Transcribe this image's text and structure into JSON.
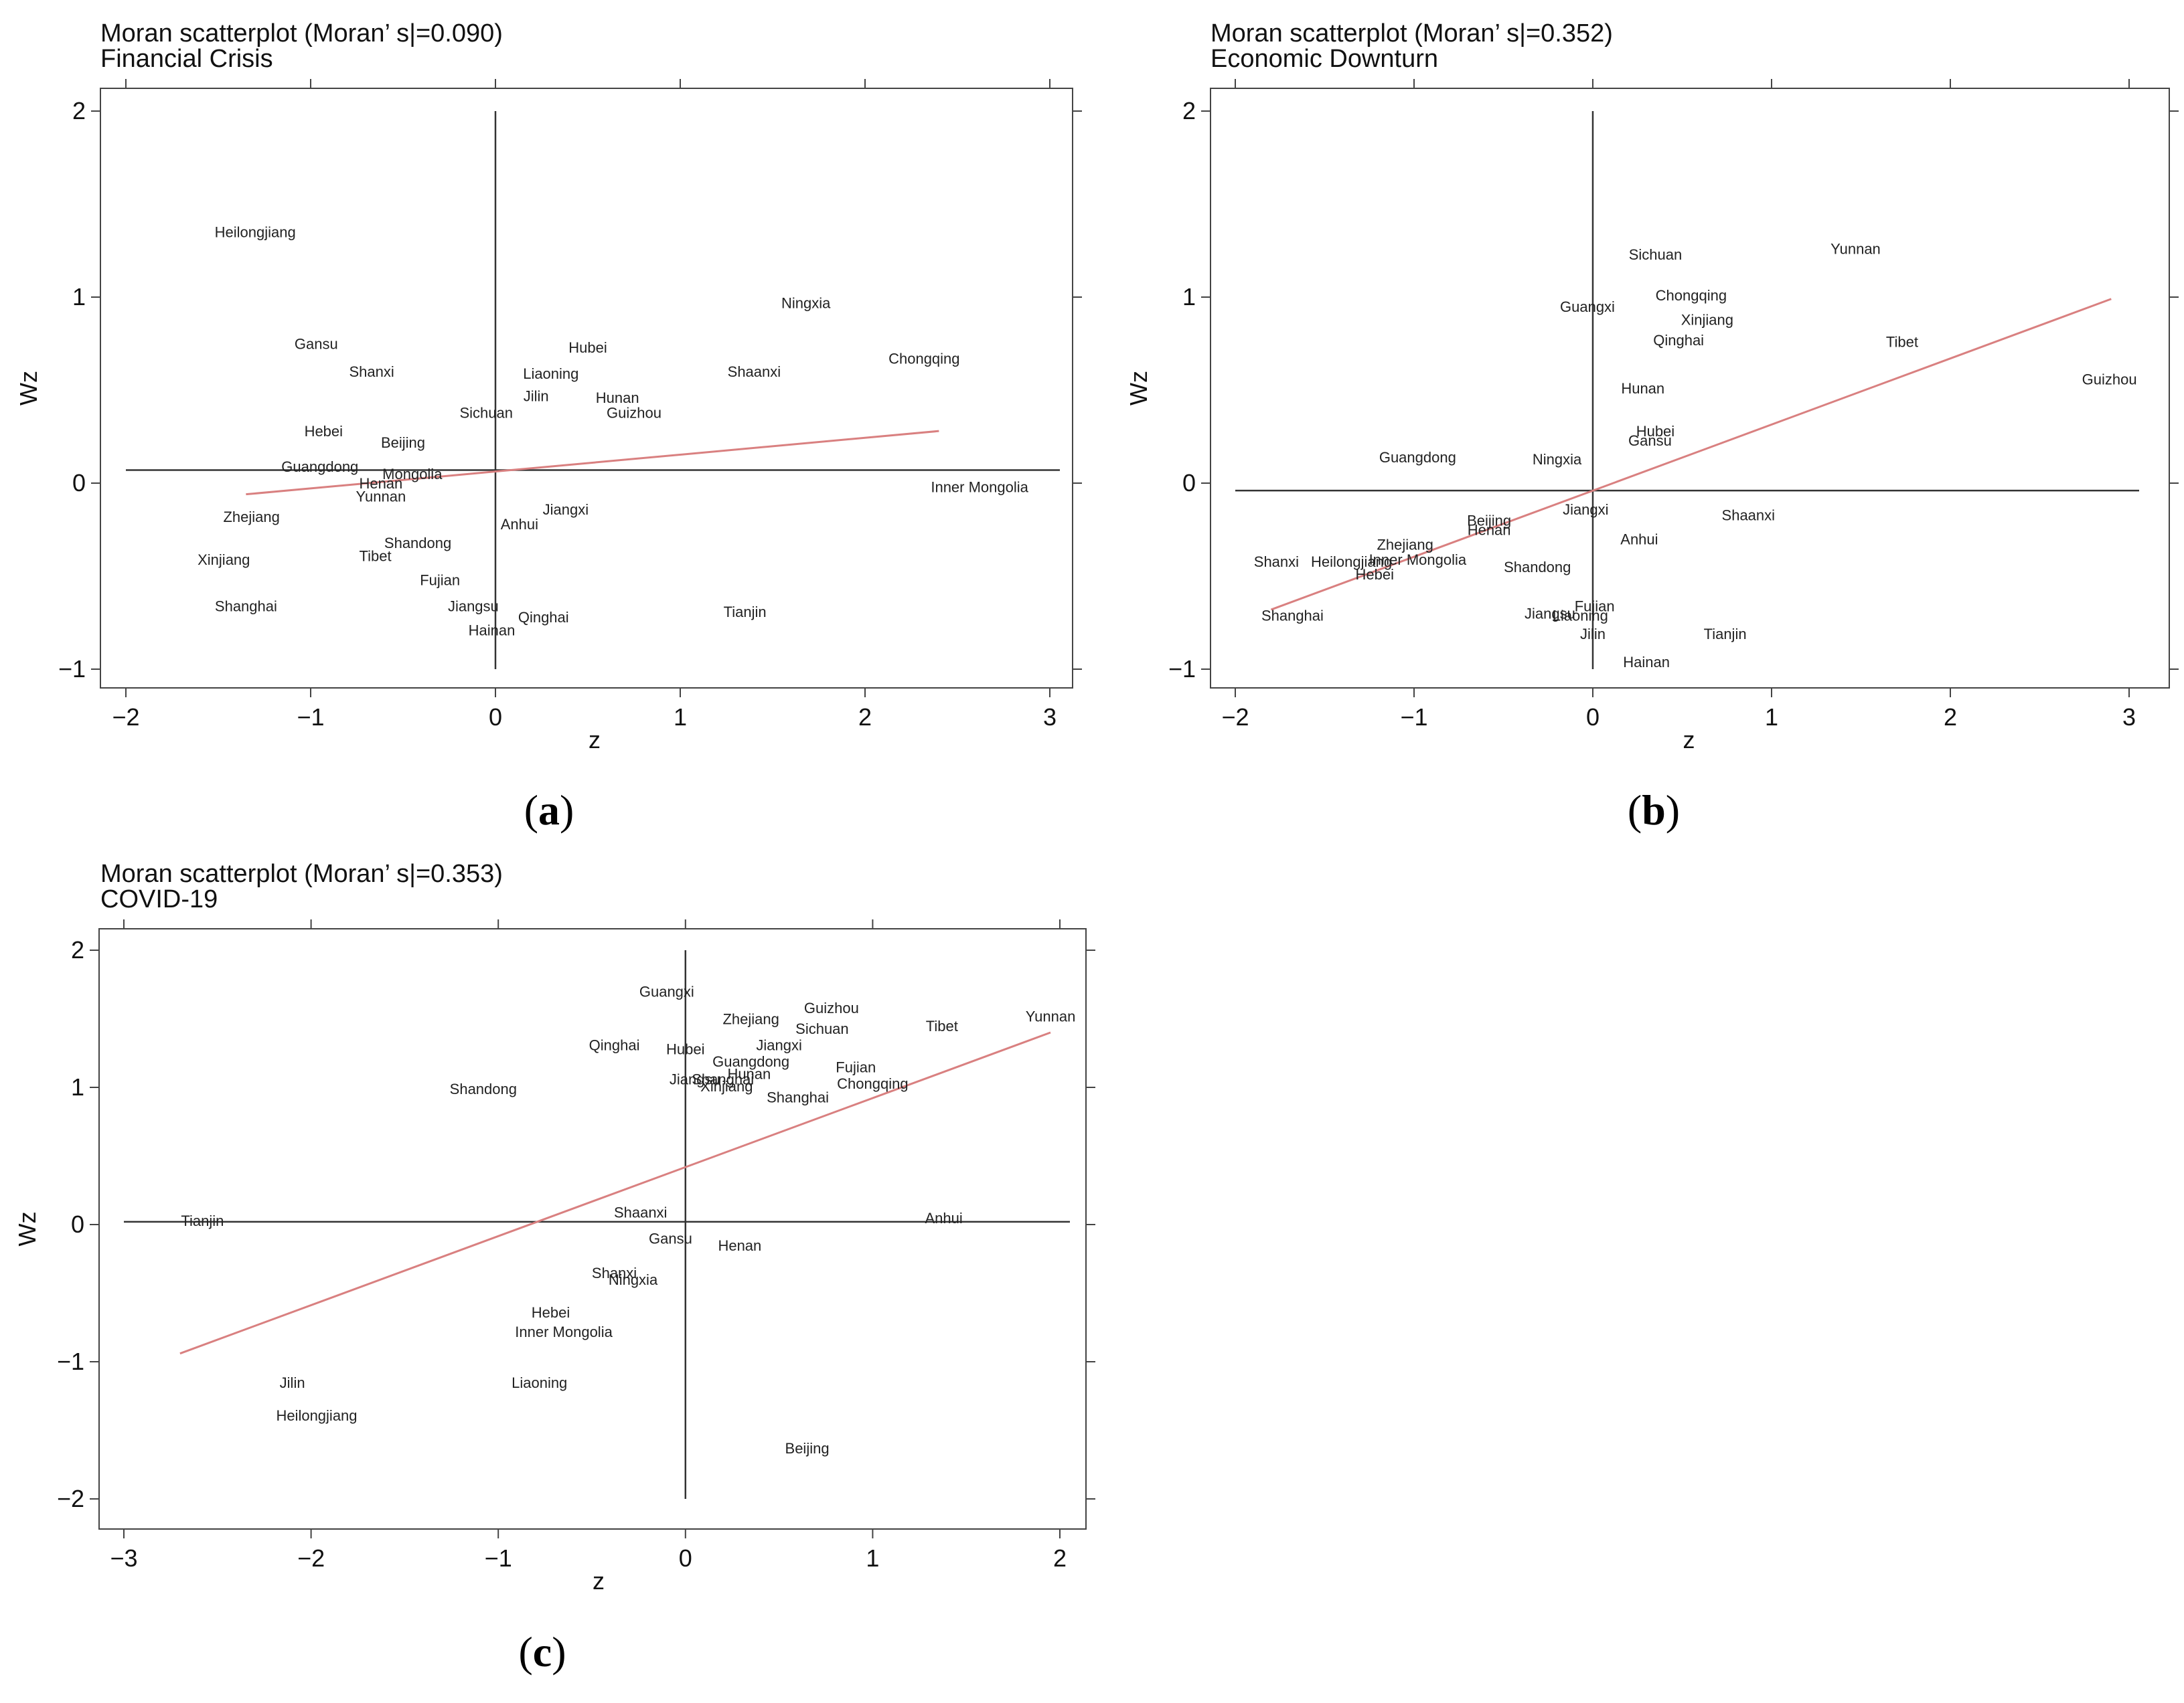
{
  "chart_data": [
    {
      "type": "scatter",
      "caption": "a",
      "title": "Moran scatterplot (Moran’ s|=0.090)",
      "subtitle": "Financial Crisis",
      "xlabel": "z",
      "ylabel": "Wz",
      "xlim": [
        -2,
        3
      ],
      "ylim": [
        -1,
        2
      ],
      "xticks": [
        -2,
        -1,
        0,
        1,
        2,
        3
      ],
      "yticks": [
        -1,
        0,
        1,
        2
      ],
      "xtick_labels": [
        "−2",
        "−1",
        "0",
        "1",
        "2",
        "3"
      ],
      "ytick_labels": [
        "−1",
        "0",
        "1",
        "2"
      ],
      "hline": 0.07,
      "vline": 0,
      "fit_line": {
        "x": [
          -1.35,
          2.4
        ],
        "y": [
          -0.06,
          0.28
        ],
        "color": "#d98080"
      },
      "points": [
        {
          "name": "Heilongjiang",
          "x": -1.3,
          "y": 1.35
        },
        {
          "name": "Gansu",
          "x": -0.97,
          "y": 0.75
        },
        {
          "name": "Shanxi",
          "x": -0.67,
          "y": 0.6
        },
        {
          "name": "Hebei",
          "x": -0.93,
          "y": 0.28
        },
        {
          "name": "Beijing",
          "x": -0.5,
          "y": 0.22
        },
        {
          "name": "Guangdong",
          "x": -0.95,
          "y": 0.09
        },
        {
          "name": "Mongolia",
          "x": -0.45,
          "y": 0.05
        },
        {
          "name": "Henan",
          "x": -0.62,
          "y": 0.0
        },
        {
          "name": "Yunnan",
          "x": -0.62,
          "y": -0.07
        },
        {
          "name": "Zhejiang",
          "x": -1.32,
          "y": -0.18
        },
        {
          "name": "Shandong",
          "x": -0.42,
          "y": -0.32
        },
        {
          "name": "Tibet",
          "x": -0.65,
          "y": -0.39
        },
        {
          "name": "Xinjiang",
          "x": -1.47,
          "y": -0.41
        },
        {
          "name": "Fujian",
          "x": -0.3,
          "y": -0.52
        },
        {
          "name": "Shanghai",
          "x": -1.35,
          "y": -0.66
        },
        {
          "name": "Jiangsu",
          "x": -0.12,
          "y": -0.66
        },
        {
          "name": "Qinghai",
          "x": 0.26,
          "y": -0.72
        },
        {
          "name": "Hainan",
          "x": -0.02,
          "y": -0.79
        },
        {
          "name": "Hubei",
          "x": 0.5,
          "y": 0.73
        },
        {
          "name": "Liaoning",
          "x": 0.3,
          "y": 0.59
        },
        {
          "name": "Jilin",
          "x": 0.22,
          "y": 0.47
        },
        {
          "name": "Sichuan",
          "x": -0.05,
          "y": 0.38
        },
        {
          "name": "Hunan",
          "x": 0.66,
          "y": 0.46
        },
        {
          "name": "Guizhou",
          "x": 0.75,
          "y": 0.38
        },
        {
          "name": "Jiangxi",
          "x": 0.38,
          "y": -0.14
        },
        {
          "name": "Anhui",
          "x": 0.13,
          "y": -0.22
        },
        {
          "name": "Ningxia",
          "x": 1.68,
          "y": 0.97
        },
        {
          "name": "Shaanxi",
          "x": 1.4,
          "y": 0.6
        },
        {
          "name": "Chongqing",
          "x": 2.32,
          "y": 0.67
        },
        {
          "name": "Inner Mongolia",
          "x": 2.62,
          "y": -0.02
        },
        {
          "name": "Tianjin",
          "x": 1.35,
          "y": -0.69
        }
      ]
    },
    {
      "type": "scatter",
      "caption": "b",
      "title": "Moran scatterplot (Moran’ s|=0.352)",
      "subtitle": "Economic Downturn",
      "xlabel": "z",
      "ylabel": "Wz",
      "xlim": [
        -2,
        3
      ],
      "ylim": [
        -1,
        2
      ],
      "xticks": [
        -2,
        -1,
        0,
        1,
        2,
        3
      ],
      "yticks": [
        -1,
        0,
        1,
        2
      ],
      "xtick_labels": [
        "−2",
        "−1",
        "0",
        "1",
        "2",
        "3"
      ],
      "ytick_labels": [
        "−1",
        "0",
        "1",
        "2"
      ],
      "hline": -0.04,
      "vline": 0,
      "fit_line": {
        "x": [
          -1.8,
          2.9
        ],
        "y": [
          -0.68,
          0.99
        ],
        "color": "#d98080"
      },
      "points": [
        {
          "name": "Sichuan",
          "x": 0.35,
          "y": 1.23
        },
        {
          "name": "Yunnan",
          "x": 1.47,
          "y": 1.26
        },
        {
          "name": "Chongqing",
          "x": 0.55,
          "y": 1.01
        },
        {
          "name": "Guangxi",
          "x": -0.03,
          "y": 0.95
        },
        {
          "name": "Xinjiang",
          "x": 0.64,
          "y": 0.88
        },
        {
          "name": "Qinghai",
          "x": 0.48,
          "y": 0.77
        },
        {
          "name": "Tibet",
          "x": 1.73,
          "y": 0.76
        },
        {
          "name": "Guizhou",
          "x": 2.89,
          "y": 0.56
        },
        {
          "name": "Hunan",
          "x": 0.28,
          "y": 0.51
        },
        {
          "name": "Hubei",
          "x": 0.35,
          "y": 0.28
        },
        {
          "name": "Gansu",
          "x": 0.32,
          "y": 0.23
        },
        {
          "name": "Guangdong",
          "x": -0.98,
          "y": 0.14
        },
        {
          "name": "Ningxia",
          "x": -0.2,
          "y": 0.13
        },
        {
          "name": "Jiangxi",
          "x": -0.04,
          "y": -0.14
        },
        {
          "name": "Beijing",
          "x": -0.58,
          "y": -0.2
        },
        {
          "name": "Henan",
          "x": -0.58,
          "y": -0.25
        },
        {
          "name": "Shaanxi",
          "x": 0.87,
          "y": -0.17
        },
        {
          "name": "Anhui",
          "x": 0.26,
          "y": -0.3
        },
        {
          "name": "Zhejiang",
          "x": -1.05,
          "y": -0.33
        },
        {
          "name": "Shanxi",
          "x": -1.77,
          "y": -0.42
        },
        {
          "name": "Heilongjiang",
          "x": -1.35,
          "y": -0.42
        },
        {
          "name": "Inner Mongolia",
          "x": -0.98,
          "y": -0.41
        },
        {
          "name": "Hebei",
          "x": -1.22,
          "y": -0.49
        },
        {
          "name": "Shandong",
          "x": -0.31,
          "y": -0.45
        },
        {
          "name": "Shanghai",
          "x": -1.68,
          "y": -0.71
        },
        {
          "name": "Jiangsu",
          "x": -0.24,
          "y": -0.7
        },
        {
          "name": "Liaoning",
          "x": -0.07,
          "y": -0.71
        },
        {
          "name": "Fujian",
          "x": 0.01,
          "y": -0.66
        },
        {
          "name": "Jilin",
          "x": 0.0,
          "y": -0.81
        },
        {
          "name": "Tianjin",
          "x": 0.74,
          "y": -0.81
        },
        {
          "name": "Hainan",
          "x": 0.3,
          "y": -0.96
        }
      ]
    },
    {
      "type": "scatter",
      "caption": "c",
      "title": "Moran scatterplot (Moran’ s|=0.353)",
      "subtitle": "COVID-19",
      "xlabel": "z",
      "ylabel": "Wz",
      "xlim": [
        -3,
        2
      ],
      "ylim": [
        -2,
        2
      ],
      "xticks": [
        -3,
        -2,
        -1,
        0,
        1,
        2
      ],
      "yticks": [
        -2,
        -1,
        0,
        1,
        2
      ],
      "xtick_labels": [
        "−3",
        "−2",
        "−1",
        "0",
        "1",
        "2"
      ],
      "ytick_labels": [
        "−2",
        "−1",
        "0",
        "1",
        "2"
      ],
      "hline": 0.02,
      "vline": 0,
      "fit_line": {
        "x": [
          -2.7,
          1.95
        ],
        "y": [
          -0.94,
          1.4
        ],
        "color": "#d98080"
      },
      "points": [
        {
          "name": "Guangxi",
          "x": -0.1,
          "y": 1.7
        },
        {
          "name": "Guizhou",
          "x": 0.78,
          "y": 1.58
        },
        {
          "name": "Zhejiang",
          "x": 0.35,
          "y": 1.5
        },
        {
          "name": "Sichuan",
          "x": 0.73,
          "y": 1.43
        },
        {
          "name": "Tibet",
          "x": 1.37,
          "y": 1.45
        },
        {
          "name": "Yunnan",
          "x": 1.95,
          "y": 1.52
        },
        {
          "name": "Qinghai",
          "x": -0.38,
          "y": 1.31
        },
        {
          "name": "Hubei",
          "x": 0.0,
          "y": 1.28
        },
        {
          "name": "Jiangxi",
          "x": 0.5,
          "y": 1.31
        },
        {
          "name": "Guangdong",
          "x": 0.35,
          "y": 1.19
        },
        {
          "name": "Fujian",
          "x": 0.91,
          "y": 1.15
        },
        {
          "name": "Hunan",
          "x": 0.34,
          "y": 1.1
        },
        {
          "name": "Jiangsu",
          "x": 0.05,
          "y": 1.06
        },
        {
          "name": "Shanghai",
          "x": 0.2,
          "y": 1.06
        },
        {
          "name": "Xinjiang",
          "x": 0.22,
          "y": 1.01
        },
        {
          "name": "Chongqing",
          "x": 1.0,
          "y": 1.03
        },
        {
          "name": "Shandong",
          "x": -1.08,
          "y": 0.99
        },
        {
          "name": "Shanghai",
          "x": 0.6,
          "y": 0.93
        },
        {
          "name": "Tianjin",
          "x": -2.58,
          "y": 0.03
        },
        {
          "name": "Shaanxi",
          "x": -0.24,
          "y": 0.09
        },
        {
          "name": "Anhui",
          "x": 1.38,
          "y": 0.05
        },
        {
          "name": "Gansu",
          "x": -0.08,
          "y": -0.1
        },
        {
          "name": "Henan",
          "x": 0.29,
          "y": -0.15
        },
        {
          "name": "Shanxi",
          "x": -0.38,
          "y": -0.35
        },
        {
          "name": "Ningxia",
          "x": -0.28,
          "y": -0.4
        },
        {
          "name": "Hebei",
          "x": -0.72,
          "y": -0.64
        },
        {
          "name": "Inner Mongolia",
          "x": -0.65,
          "y": -0.78
        },
        {
          "name": "Jilin",
          "x": -2.1,
          "y": -1.15
        },
        {
          "name": "Liaoning",
          "x": -0.78,
          "y": -1.15
        },
        {
          "name": "Heilongjiang",
          "x": -1.97,
          "y": -1.39
        },
        {
          "name": "Beijing",
          "x": 0.65,
          "y": -1.63
        }
      ]
    }
  ]
}
